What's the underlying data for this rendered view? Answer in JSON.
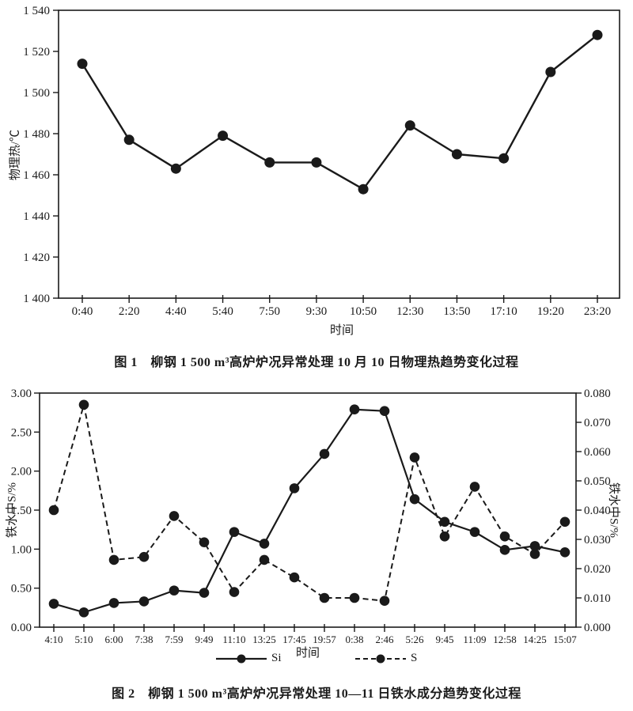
{
  "page": {
    "background": "#ffffff",
    "ink": "#1a1a1a"
  },
  "chart_data": [
    {
      "id": "figure-1",
      "type": "line",
      "caption": "图 1　柳钢 1 500 m³高炉炉况异常处理 10 月 10 日物理热趋势变化过程",
      "xlabel": "时间",
      "ylabel": "物理热/℃",
      "categories": [
        "0:40",
        "2:20",
        "4:40",
        "5:40",
        "7:50",
        "9:30",
        "10:50",
        "12:30",
        "13:50",
        "17:10",
        "19:20",
        "23:20"
      ],
      "values": [
        1514,
        1477,
        1463,
        1479,
        1466,
        1466,
        1453,
        1484,
        1470,
        1468,
        1510,
        1528
      ],
      "ylim": [
        1400,
        1540
      ],
      "ytick_values": [
        1400,
        1420,
        1440,
        1460,
        1480,
        1500,
        1520,
        1540
      ],
      "ytick_labels": [
        "1 400",
        "1 420",
        "1 440",
        "1 460",
        "1 480",
        "1 500",
        "1 520",
        "1 540"
      ],
      "marker": "filled-circle",
      "line_style": "solid",
      "grid": false,
      "legend": "none"
    },
    {
      "id": "figure-2",
      "type": "line",
      "caption": "图 2　柳钢 1 500 m³高炉炉况异常处理 10—11 日铁水成分趋势变化过程",
      "xlabel": "时间",
      "ylabel_left": "铁水中S/%",
      "ylabel_right": "铁水中S/%",
      "categories": [
        "4:10",
        "5:10",
        "6:00",
        "7:38",
        "7:59",
        "9:49",
        "11:10",
        "13:25",
        "17:45",
        "19:57",
        "0:38",
        "2:46",
        "5:26",
        "9:45",
        "11:09",
        "12:58",
        "14:25",
        "15:07"
      ],
      "series": [
        {
          "name": "Si",
          "axis": "left",
          "line_style": "solid",
          "marker": "filled-circle",
          "values": [
            0.3,
            0.19,
            0.31,
            0.33,
            0.47,
            0.44,
            1.22,
            1.07,
            1.78,
            2.22,
            2.79,
            2.77,
            1.64,
            1.35,
            1.22,
            0.99,
            1.04,
            0.96
          ]
        },
        {
          "name": "S",
          "axis": "right",
          "line_style": "dashed",
          "marker": "filled-circle",
          "values": [
            0.04,
            0.076,
            0.023,
            0.024,
            0.038,
            0.029,
            0.012,
            0.023,
            0.017,
            0.01,
            0.01,
            0.009,
            0.058,
            0.031,
            0.048,
            0.031,
            0.025,
            0.036
          ]
        }
      ],
      "ylim_left": [
        0,
        3.0
      ],
      "ylim_right": [
        0,
        0.08
      ],
      "ytick_values_left": [
        0,
        0.5,
        1.0,
        1.5,
        2.0,
        2.5,
        3.0
      ],
      "ytick_labels_left": [
        "0.00",
        "0.50",
        "1.00",
        "1.50",
        "2.00",
        "2.50",
        "3.00"
      ],
      "ytick_values_right": [
        0,
        0.01,
        0.02,
        0.03,
        0.04,
        0.05,
        0.06,
        0.07,
        0.08
      ],
      "ytick_labels_right": [
        "0.000",
        "0.010",
        "0.020",
        "0.030",
        "0.040",
        "0.050",
        "0.060",
        "0.070",
        "0.080"
      ],
      "grid": false,
      "legend": {
        "position": "bottom",
        "items": [
          "Si",
          "S"
        ]
      }
    }
  ]
}
